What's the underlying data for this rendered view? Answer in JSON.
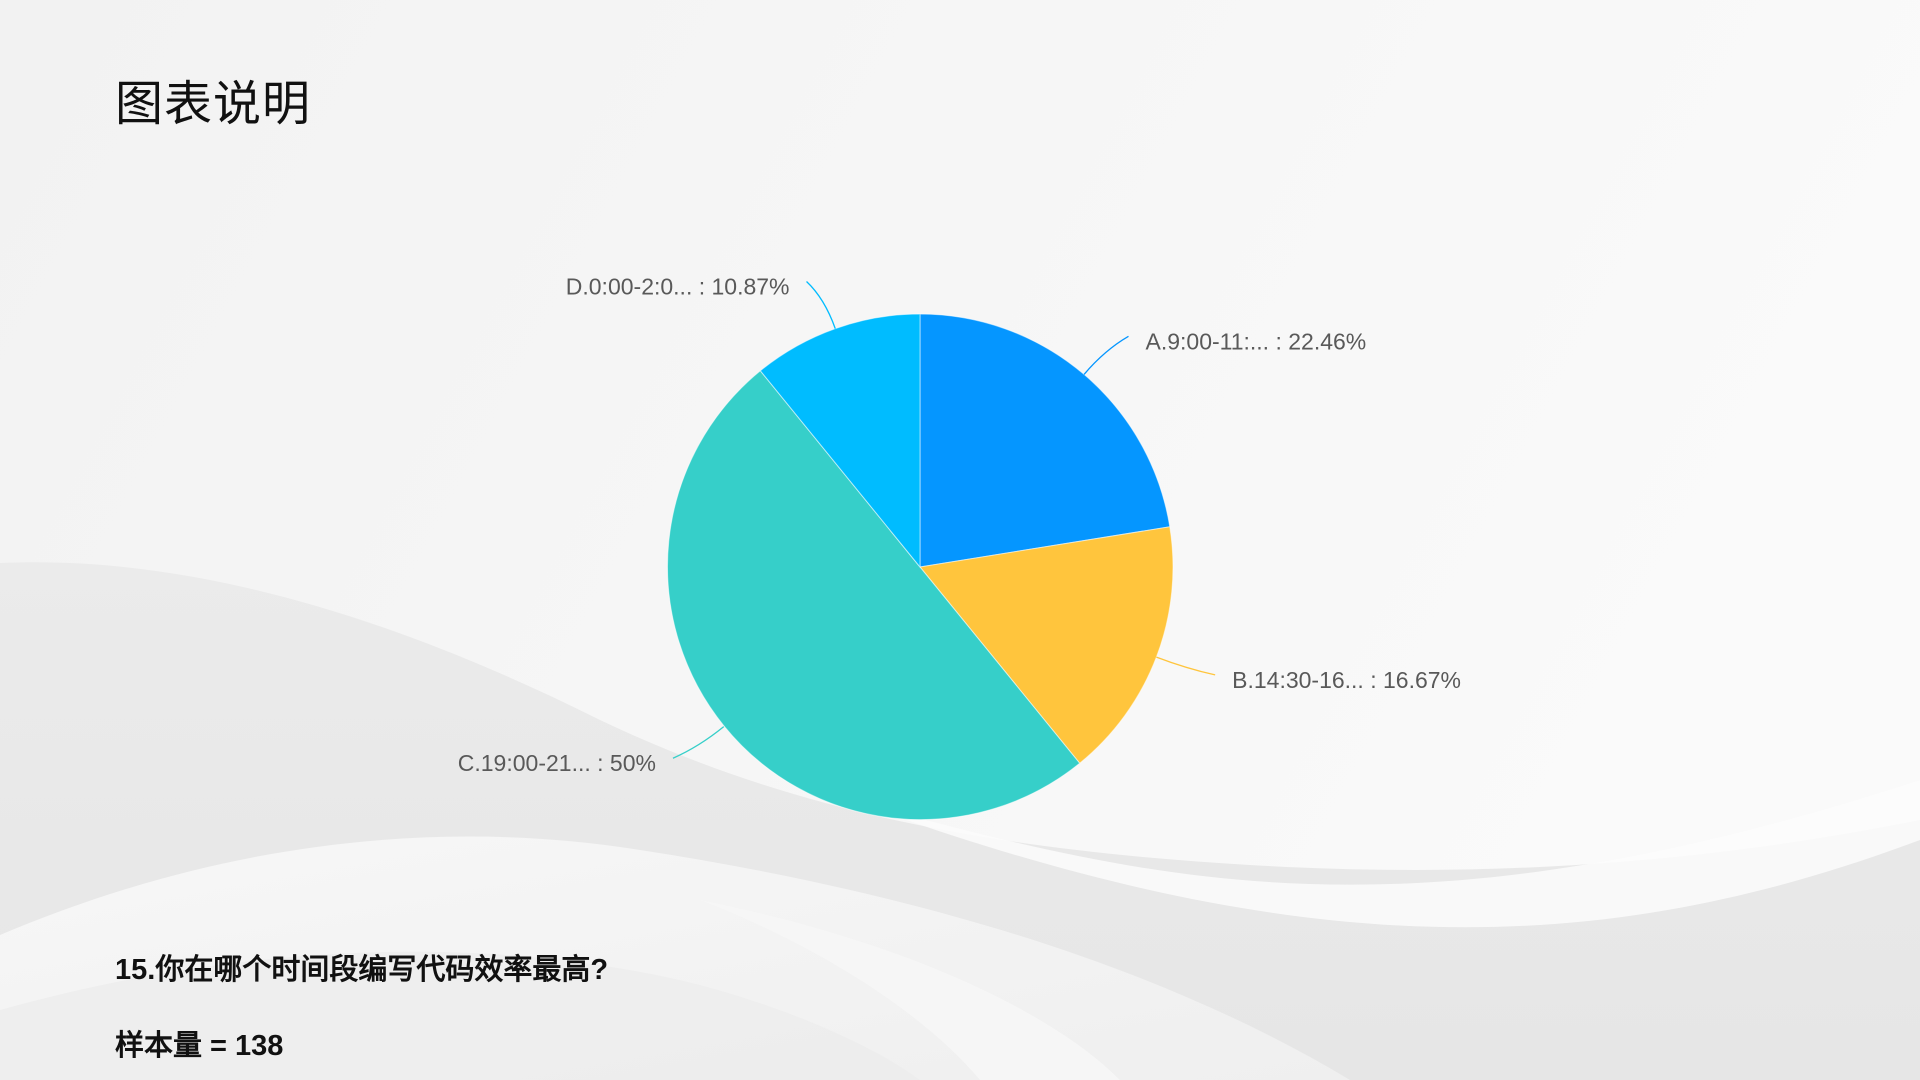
{
  "slide": {
    "title": "图表说明",
    "question": "15.你在哪个时间段编写代码效率最高?",
    "sample_size": "样本量 = 138"
  },
  "chart_data": {
    "type": "pie",
    "categories": [
      "A.9:00-11:...",
      "B.14:30-16...",
      "C.19:00-21...",
      "D.0:00-2:0..."
    ],
    "values": [
      22.46,
      16.67,
      50,
      10.87
    ],
    "unit": "%",
    "data_labels": [
      "A.9:00-11:... : 22.46%",
      "B.14:30-16... : 16.67%",
      "C.19:00-21... : 50%",
      "D.0:00-2:0... : 10.87%"
    ],
    "colors": [
      "#0596ff",
      "#ffc53d",
      "#36cfc9",
      "#00bcff"
    ],
    "legend": "none"
  }
}
